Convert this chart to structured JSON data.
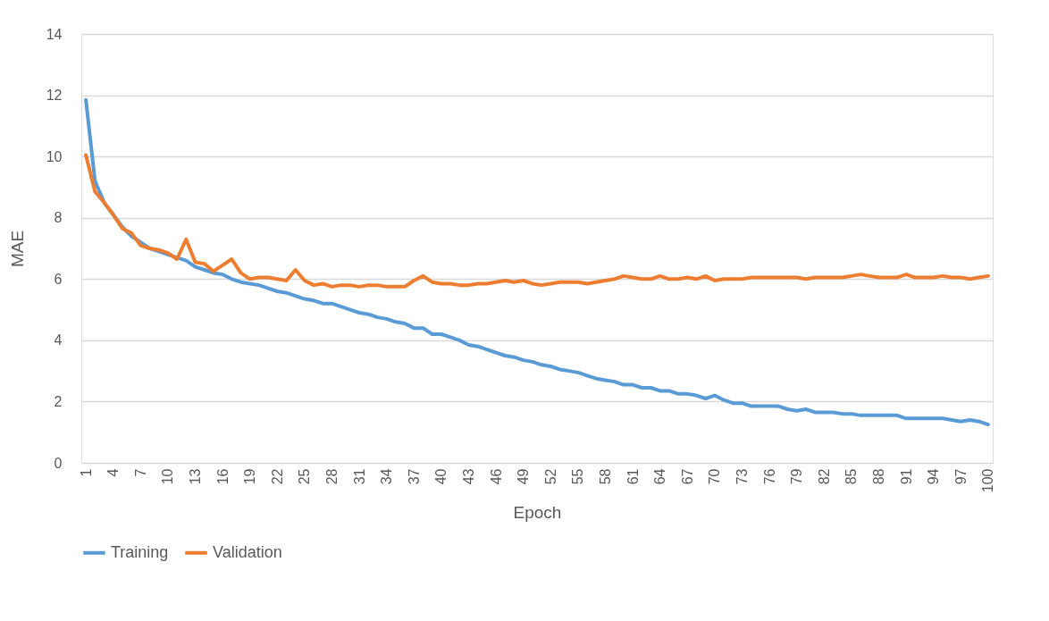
{
  "chart_data": {
    "type": "line",
    "xlabel": "Epoch",
    "ylabel": "MAE",
    "categories": [
      "1",
      null,
      null,
      "4",
      null,
      null,
      "7",
      null,
      null,
      "10",
      null,
      null,
      "13",
      null,
      null,
      "16",
      null,
      null,
      "19",
      null,
      null,
      "22",
      null,
      null,
      "25",
      null,
      null,
      "28",
      null,
      null,
      "31",
      null,
      null,
      "34",
      null,
      null,
      "37",
      null,
      null,
      "40",
      null,
      null,
      "43",
      null,
      null,
      "46",
      null,
      null,
      "49",
      null,
      null,
      "52",
      null,
      null,
      "55",
      null,
      null,
      "58",
      null,
      null,
      "61",
      null,
      null,
      "64",
      null,
      null,
      "67",
      null,
      null,
      "70",
      null,
      null,
      "73",
      null,
      null,
      "76",
      null,
      null,
      "79",
      null,
      null,
      "82",
      null,
      null,
      "85",
      null,
      null,
      "88",
      null,
      null,
      "91",
      null,
      null,
      "94",
      null,
      null,
      "97",
      null,
      null,
      "100"
    ],
    "series": [
      {
        "name": "Training",
        "color": "#5b9bd5",
        "values": [
          11.85,
          9.2,
          8.5,
          8.1,
          7.7,
          7.4,
          7.2,
          7.0,
          6.9,
          6.8,
          6.7,
          6.6,
          6.4,
          6.3,
          6.2,
          6.15,
          6.0,
          5.9,
          5.85,
          5.8,
          5.7,
          5.6,
          5.55,
          5.45,
          5.35,
          5.3,
          5.2,
          5.2,
          5.1,
          5.0,
          4.9,
          4.85,
          4.75,
          4.7,
          4.6,
          4.55,
          4.4,
          4.4,
          4.2,
          4.2,
          4.1,
          4.0,
          3.85,
          3.8,
          3.7,
          3.6,
          3.5,
          3.45,
          3.35,
          3.3,
          3.2,
          3.15,
          3.05,
          3.0,
          2.95,
          2.85,
          2.75,
          2.7,
          2.65,
          2.55,
          2.55,
          2.45,
          2.45,
          2.35,
          2.35,
          2.25,
          2.25,
          2.2,
          2.1,
          2.2,
          2.05,
          1.95,
          1.95,
          1.85,
          1.85,
          1.85,
          1.85,
          1.75,
          1.7,
          1.75,
          1.65,
          1.65,
          1.65,
          1.6,
          1.6,
          1.55,
          1.55,
          1.55,
          1.55,
          1.55,
          1.45,
          1.45,
          1.45,
          1.45,
          1.45,
          1.4,
          1.35,
          1.4,
          1.35,
          1.25
        ]
      },
      {
        "name": "Validation",
        "color": "#ed7d31",
        "values": [
          10.05,
          8.85,
          8.5,
          8.1,
          7.65,
          7.5,
          7.1,
          7.0,
          6.95,
          6.85,
          6.65,
          7.3,
          6.55,
          6.5,
          6.25,
          6.45,
          6.65,
          6.2,
          6.0,
          6.05,
          6.05,
          6.0,
          5.95,
          6.3,
          5.95,
          5.8,
          5.85,
          5.75,
          5.8,
          5.8,
          5.75,
          5.8,
          5.8,
          5.75,
          5.75,
          5.75,
          5.95,
          6.1,
          5.9,
          5.85,
          5.85,
          5.8,
          5.8,
          5.85,
          5.85,
          5.9,
          5.95,
          5.9,
          5.95,
          5.85,
          5.8,
          5.85,
          5.9,
          5.9,
          5.9,
          5.85,
          5.9,
          5.95,
          6.0,
          6.1,
          6.05,
          6.0,
          6.0,
          6.1,
          6.0,
          6.0,
          6.05,
          6.0,
          6.1,
          5.95,
          6.0,
          6.0,
          6.0,
          6.05,
          6.05,
          6.05,
          6.05,
          6.05,
          6.05,
          6.0,
          6.05,
          6.05,
          6.05,
          6.05,
          6.1,
          6.15,
          6.1,
          6.05,
          6.05,
          6.05,
          6.15,
          6.05,
          6.05,
          6.05,
          6.1,
          6.05,
          6.05,
          6.0,
          6.05,
          6.1
        ]
      }
    ],
    "ylim": [
      0,
      14
    ],
    "yticks": [
      0,
      2,
      4,
      6,
      8,
      10,
      12,
      14
    ],
    "grid": "y",
    "legend": "bottom",
    "line_style": "solid",
    "marker": "none"
  }
}
